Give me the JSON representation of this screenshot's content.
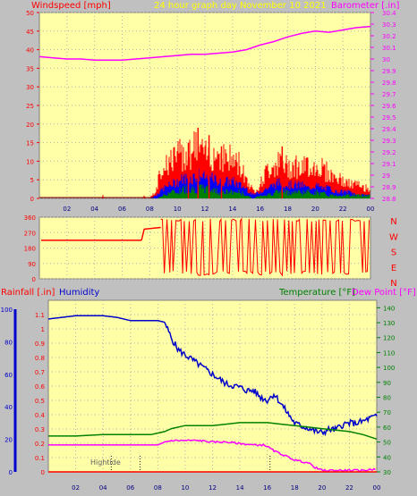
{
  "header": {
    "left_title": "Windspeed [mph]",
    "center_title": "24 hour graph day   November 10 2021",
    "right_title": "Barometer [.in]"
  },
  "colors": {
    "background": "#c0c0c0",
    "plot_bg": "#ffffa8",
    "wind": "#ff0000",
    "gust_avg": "#0000ff",
    "wind_low": "#008000",
    "barometer": "#ff00ff",
    "humidity": "#0000cc",
    "temperature": "#008000",
    "dewpoint": "#ff00ff",
    "rainfall": "#ff0000",
    "title": "#ffff00"
  },
  "x_ticks": [
    "02",
    "04",
    "06",
    "08",
    "10",
    "12",
    "14",
    "16",
    "18",
    "20",
    "22",
    "00"
  ],
  "direction_labels": [
    "N",
    "W",
    "S",
    "E",
    "N"
  ],
  "bottom_legend": {
    "rainfall": "Rainfall [.in]",
    "humidity": "Humidity",
    "temperature": "Temperature [°F]",
    "dewpoint": "Dew Point [°F]"
  },
  "annotation": "Hightide",
  "chart_data": [
    {
      "type": "line",
      "name": "wind-barometer",
      "x_range": [
        0,
        24
      ],
      "wind_ticks": [
        "0",
        "5",
        "10",
        "15",
        "20",
        "25",
        "30",
        "35",
        "40",
        "45",
        "50"
      ],
      "wind_ylim": [
        0,
        50
      ],
      "baro_ticks": [
        "28.8",
        "28.9",
        "29",
        "29.1",
        "29.2",
        "29.3",
        "29.4",
        "29.5",
        "29.6",
        "29.7",
        "29.8",
        "29.9",
        "30",
        "30.1",
        "30.2",
        "30.3",
        "30.4"
      ],
      "baro_ylim": [
        28.8,
        30.4
      ],
      "series": [
        {
          "key": "barometer",
          "x": [
            0,
            1,
            2,
            3,
            4,
            5,
            6,
            7,
            8,
            9,
            10,
            11,
            12,
            13,
            14,
            15,
            16,
            17,
            18,
            19,
            20,
            21,
            22,
            23,
            24
          ],
          "values": [
            30.02,
            30.01,
            30.0,
            30.0,
            29.99,
            29.99,
            29.99,
            30.0,
            30.01,
            30.02,
            30.03,
            30.04,
            30.04,
            30.05,
            30.06,
            30.08,
            30.12,
            30.15,
            30.19,
            30.22,
            30.24,
            30.23,
            30.25,
            30.27,
            30.28
          ]
        },
        {
          "key": "wind_gust",
          "x": [
            0,
            4.5,
            4.6,
            4.7,
            7.5,
            7.6,
            7.7,
            8.0,
            8.4,
            8.7,
            9.0,
            9.5,
            10.0,
            10.5,
            11.0,
            11.5,
            12.0,
            12.5,
            13.0,
            13.5,
            14.0,
            14.5,
            15.0,
            15.5,
            16.0,
            16.5,
            17.0,
            17.5,
            18.0,
            18.5,
            19.0,
            19.5,
            20.0,
            20.5,
            21.0,
            21.5,
            22.0,
            22.5,
            23.0,
            23.5,
            24
          ],
          "values": [
            0,
            0,
            1,
            0,
            0,
            1,
            0,
            0,
            2,
            6,
            10,
            11,
            12,
            13,
            14,
            15,
            12,
            13,
            13,
            12,
            11,
            10,
            6,
            2,
            4,
            8,
            10,
            10,
            9,
            10,
            8,
            10,
            9,
            9,
            7,
            6,
            5,
            4,
            4,
            3,
            3
          ]
        },
        {
          "key": "wind_avg",
          "x": [
            0,
            8.0,
            8.5,
            9.0,
            9.5,
            10.0,
            10.5,
            11.0,
            11.5,
            12.0,
            12.5,
            13.0,
            13.5,
            14.0,
            14.5,
            15.0,
            15.5,
            16.0,
            16.5,
            17.0,
            17.5,
            18.0,
            18.5,
            19.0,
            19.5,
            20.0,
            20.5,
            21.0,
            21.5,
            22.0,
            22.5,
            23.0,
            23.5,
            24
          ],
          "values": [
            0,
            0,
            1,
            3,
            4,
            5,
            6,
            6,
            7,
            6,
            6,
            5,
            5,
            5,
            4,
            3,
            1,
            2,
            3,
            4,
            5,
            4,
            4,
            4,
            3,
            4,
            3,
            3,
            2,
            2,
            2,
            1,
            1,
            1
          ]
        },
        {
          "key": "wind_low",
          "x": [
            0,
            8.5,
            9.0,
            9.5,
            10.0,
            10.5,
            11.0,
            11.5,
            12.0,
            12.5,
            13.0,
            13.5,
            14.0,
            14.5,
            15.0,
            15.5,
            16.0,
            16.5,
            17.0,
            18.0,
            19.0,
            20.0,
            21.0,
            22.0,
            23.0,
            24
          ],
          "values": [
            0,
            0,
            1,
            2,
            2,
            3,
            3,
            3,
            3,
            3,
            2,
            2,
            2,
            2,
            1,
            0,
            1,
            1,
            2,
            2,
            2,
            2,
            1,
            1,
            1,
            1
          ]
        }
      ],
      "gust_spikes": [
        {
          "x": 11.5,
          "value": 19
        },
        {
          "x": 12.3,
          "value": 17
        },
        {
          "x": 10.8,
          "value": 15
        },
        {
          "x": 17.6,
          "value": 14
        },
        {
          "x": 13.2,
          "value": 14
        }
      ]
    },
    {
      "type": "line",
      "name": "wind-direction",
      "x_range": [
        0,
        24
      ],
      "ylim": [
        0,
        360
      ],
      "y_ticks": [
        "0",
        "90",
        "180",
        "270",
        "360"
      ],
      "baseline_value": 225,
      "baseline_until": 7.4,
      "steady_value": 290,
      "steady_from": 7.4,
      "steady_until": 8.8,
      "oscillation": {
        "from": 8.8,
        "to": 24,
        "low": 20,
        "high": 350
      }
    },
    {
      "type": "line",
      "name": "temp-humidity-rain",
      "x_range": [
        0,
        24
      ],
      "left_rain_ticks": [
        "0",
        "0.1",
        "0.2",
        "0.3",
        "0.4",
        "0.5",
        "0.6",
        "0.7",
        "0.8",
        "0.9",
        "1",
        "1.1"
      ],
      "left_rain_ylim": [
        0,
        1.2
      ],
      "left_hum_ticks": [
        "0",
        "20",
        "40",
        "60",
        "80",
        "100"
      ],
      "left_hum_ylim": [
        0,
        100
      ],
      "right_temp_ticks": [
        "30",
        "40",
        "50",
        "60",
        "70",
        "80",
        "90",
        "100",
        "110",
        "120",
        "130",
        "140"
      ],
      "right_temp_ylim": [
        30,
        145
      ],
      "series": [
        {
          "key": "humidity",
          "x": [
            0,
            1,
            2,
            3,
            4,
            5,
            6,
            7,
            7.6,
            8.0,
            8.5,
            9.0,
            9.5,
            10.0,
            10.5,
            11.0,
            11.5,
            12.0,
            12.5,
            13.0,
            13.5,
            14.0,
            14.5,
            15.0,
            15.5,
            16.0,
            16.5,
            17.0,
            17.5,
            18.0,
            18.5,
            19.0,
            19.5,
            20.0,
            20.5,
            21.0,
            21.5,
            22.0,
            22.5,
            23.0,
            23.5,
            24
          ],
          "values": [
            94,
            95,
            96,
            96,
            96,
            95,
            93,
            93,
            93,
            93,
            92,
            82,
            75,
            72,
            69,
            66,
            63,
            60,
            57,
            54,
            53,
            52,
            50,
            50,
            46,
            44,
            48,
            42,
            36,
            30,
            28,
            27,
            25,
            24,
            26,
            26,
            29,
            30,
            30,
            31,
            33,
            34
          ]
        },
        {
          "key": "temperature",
          "x": [
            0,
            2,
            4,
            6,
            7.5,
            8.0,
            8.5,
            9.0,
            10.0,
            11.0,
            12.0,
            13.0,
            14.0,
            15.0,
            16.0,
            17.0,
            18.0,
            19.0,
            20.0,
            21.0,
            22.0,
            23.0,
            24
          ],
          "values": [
            54,
            54,
            55,
            55,
            55,
            56,
            57,
            59,
            61,
            61,
            61,
            62,
            63,
            63,
            63,
            62,
            61,
            60,
            59,
            58,
            57,
            55,
            52
          ]
        },
        {
          "key": "dewpoint",
          "x": [
            0,
            2,
            4,
            6,
            7.5,
            8.0,
            8.5,
            9.0,
            10.0,
            11.0,
            12.0,
            13.0,
            14.0,
            15.0,
            15.8,
            16.0,
            16.5,
            17.0,
            17.5,
            18.0,
            18.5,
            19.0,
            19.5,
            20.0,
            21.0,
            22.0,
            23.0,
            24
          ],
          "values": [
            48,
            48,
            48,
            48,
            48,
            48,
            50,
            51,
            51,
            51,
            50,
            50,
            49,
            48,
            48,
            47,
            44,
            42,
            40,
            38,
            37,
            36,
            33,
            31,
            31,
            31,
            31,
            32
          ]
        },
        {
          "key": "rainfall",
          "x": [
            0,
            24
          ],
          "values": [
            0,
            0
          ]
        }
      ],
      "tide_marks": [
        4.6,
        6.7,
        16.2
      ]
    }
  ]
}
